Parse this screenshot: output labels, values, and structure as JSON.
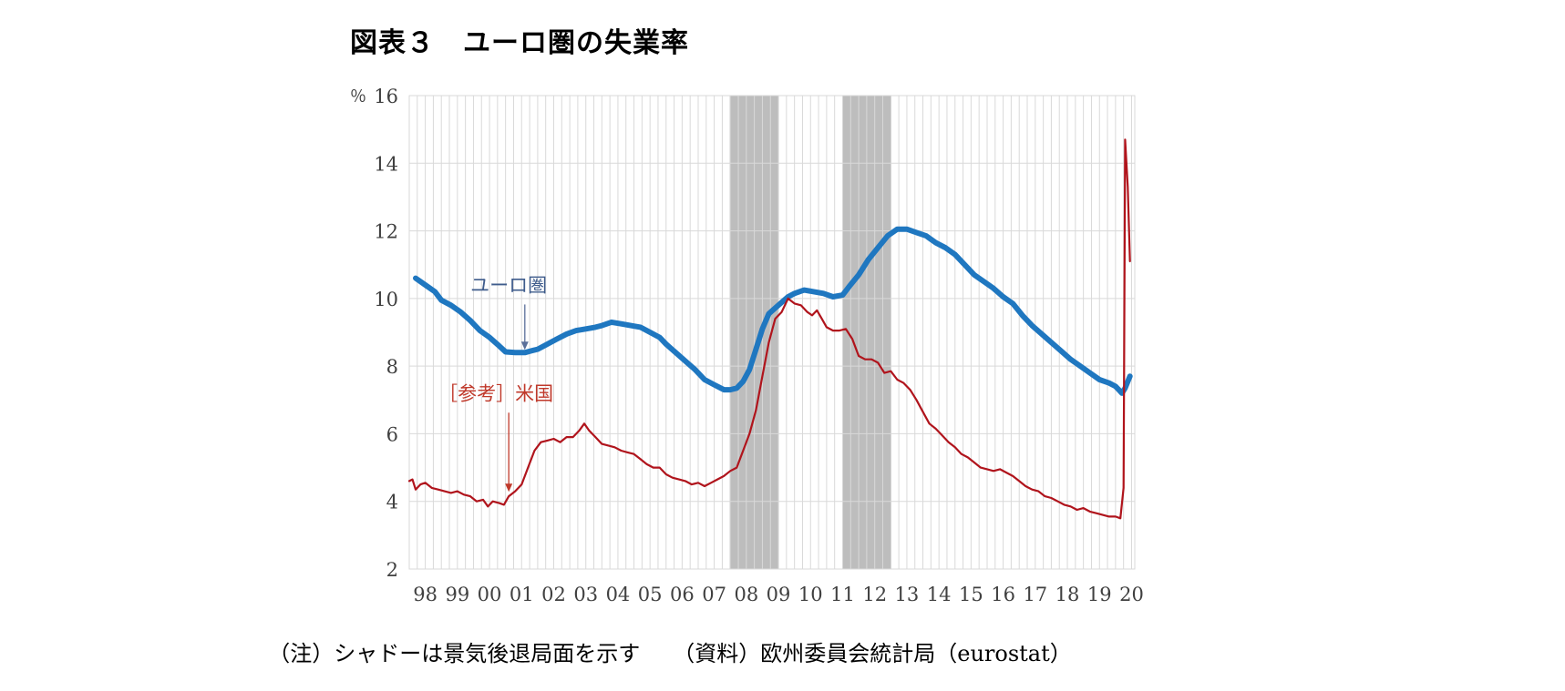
{
  "title": "図表３　ユーロ圏の失業率",
  "note": "（注）シャドーは景気後退局面を示す　　（資料）欧州委員会統計局（eurostat）",
  "chart_data": {
    "type": "line",
    "yunit": "％",
    "ylim": [
      2,
      16
    ],
    "yticks": [
      2,
      4,
      6,
      8,
      10,
      12,
      14,
      16
    ],
    "xlim": [
      1998.0,
      2020.6
    ],
    "xtick_labels": [
      "98",
      "99",
      "00",
      "01",
      "02",
      "03",
      "04",
      "05",
      "06",
      "07",
      "08",
      "09",
      "10",
      "11",
      "12",
      "13",
      "14",
      "15",
      "16",
      "17",
      "18",
      "19",
      "20"
    ],
    "grid": true,
    "recession_shading": [
      [
        2008.0,
        2009.5
      ],
      [
        2011.5,
        2013.0
      ]
    ],
    "series": [
      {
        "name": "ユーロ圏",
        "color": "#1f77c0",
        "points": [
          [
            1998.2,
            10.6
          ],
          [
            1998.5,
            10.4
          ],
          [
            1998.8,
            10.2
          ],
          [
            1999.0,
            9.95
          ],
          [
            1999.3,
            9.8
          ],
          [
            1999.6,
            9.6
          ],
          [
            1999.9,
            9.35
          ],
          [
            2000.2,
            9.05
          ],
          [
            2000.5,
            8.85
          ],
          [
            2000.8,
            8.6
          ],
          [
            2001.0,
            8.42
          ],
          [
            2001.3,
            8.4
          ],
          [
            2001.6,
            8.4
          ],
          [
            2001.8,
            8.45
          ],
          [
            2002.0,
            8.5
          ],
          [
            2002.3,
            8.65
          ],
          [
            2002.6,
            8.8
          ],
          [
            2002.9,
            8.95
          ],
          [
            2003.2,
            9.05
          ],
          [
            2003.5,
            9.1
          ],
          [
            2003.8,
            9.15
          ],
          [
            2004.0,
            9.2
          ],
          [
            2004.3,
            9.3
          ],
          [
            2004.6,
            9.25
          ],
          [
            2004.9,
            9.2
          ],
          [
            2005.2,
            9.15
          ],
          [
            2005.5,
            9.0
          ],
          [
            2005.8,
            8.85
          ],
          [
            2006.0,
            8.65
          ],
          [
            2006.3,
            8.4
          ],
          [
            2006.6,
            8.15
          ],
          [
            2006.9,
            7.9
          ],
          [
            2007.2,
            7.6
          ],
          [
            2007.5,
            7.45
          ],
          [
            2007.8,
            7.3
          ],
          [
            2008.0,
            7.3
          ],
          [
            2008.2,
            7.35
          ],
          [
            2008.4,
            7.55
          ],
          [
            2008.6,
            7.9
          ],
          [
            2008.8,
            8.5
          ],
          [
            2009.0,
            9.1
          ],
          [
            2009.2,
            9.55
          ],
          [
            2009.5,
            9.8
          ],
          [
            2009.8,
            10.05
          ],
          [
            2010.0,
            10.15
          ],
          [
            2010.3,
            10.25
          ],
          [
            2010.6,
            10.2
          ],
          [
            2010.9,
            10.15
          ],
          [
            2011.2,
            10.05
          ],
          [
            2011.5,
            10.1
          ],
          [
            2011.7,
            10.35
          ],
          [
            2012.0,
            10.7
          ],
          [
            2012.3,
            11.15
          ],
          [
            2012.6,
            11.5
          ],
          [
            2012.9,
            11.85
          ],
          [
            2013.2,
            12.05
          ],
          [
            2013.5,
            12.05
          ],
          [
            2013.8,
            11.95
          ],
          [
            2014.1,
            11.85
          ],
          [
            2014.4,
            11.65
          ],
          [
            2014.7,
            11.5
          ],
          [
            2015.0,
            11.3
          ],
          [
            2015.3,
            11.0
          ],
          [
            2015.6,
            10.7
          ],
          [
            2015.9,
            10.5
          ],
          [
            2016.2,
            10.3
          ],
          [
            2016.5,
            10.05
          ],
          [
            2016.8,
            9.85
          ],
          [
            2017.1,
            9.5
          ],
          [
            2017.4,
            9.2
          ],
          [
            2017.7,
            8.95
          ],
          [
            2018.0,
            8.7
          ],
          [
            2018.3,
            8.45
          ],
          [
            2018.6,
            8.2
          ],
          [
            2018.9,
            8.0
          ],
          [
            2019.2,
            7.8
          ],
          [
            2019.5,
            7.6
          ],
          [
            2019.8,
            7.5
          ],
          [
            2020.0,
            7.4
          ],
          [
            2020.1,
            7.3
          ],
          [
            2020.2,
            7.2
          ],
          [
            2020.3,
            7.35
          ],
          [
            2020.45,
            7.7
          ]
        ]
      },
      {
        "name": "［参考］米国",
        "color": "#b0141c",
        "points": [
          [
            1998.0,
            4.6
          ],
          [
            1998.1,
            4.65
          ],
          [
            1998.2,
            4.35
          ],
          [
            1998.35,
            4.5
          ],
          [
            1998.5,
            4.55
          ],
          [
            1998.7,
            4.4
          ],
          [
            1998.9,
            4.35
          ],
          [
            1999.1,
            4.3
          ],
          [
            1999.3,
            4.25
          ],
          [
            1999.5,
            4.3
          ],
          [
            1999.7,
            4.2
          ],
          [
            1999.9,
            4.15
          ],
          [
            2000.1,
            4.0
          ],
          [
            2000.3,
            4.05
          ],
          [
            2000.45,
            3.85
          ],
          [
            2000.6,
            4.0
          ],
          [
            2000.8,
            3.95
          ],
          [
            2000.95,
            3.9
          ],
          [
            2001.1,
            4.15
          ],
          [
            2001.3,
            4.3
          ],
          [
            2001.5,
            4.5
          ],
          [
            2001.7,
            5.0
          ],
          [
            2001.9,
            5.5
          ],
          [
            2002.1,
            5.75
          ],
          [
            2002.3,
            5.8
          ],
          [
            2002.5,
            5.85
          ],
          [
            2002.7,
            5.75
          ],
          [
            2002.9,
            5.9
          ],
          [
            2003.1,
            5.9
          ],
          [
            2003.3,
            6.1
          ],
          [
            2003.45,
            6.3
          ],
          [
            2003.6,
            6.1
          ],
          [
            2003.8,
            5.9
          ],
          [
            2004.0,
            5.7
          ],
          [
            2004.2,
            5.65
          ],
          [
            2004.4,
            5.6
          ],
          [
            2004.6,
            5.5
          ],
          [
            2004.8,
            5.45
          ],
          [
            2005.0,
            5.4
          ],
          [
            2005.2,
            5.25
          ],
          [
            2005.4,
            5.1
          ],
          [
            2005.6,
            5.0
          ],
          [
            2005.8,
            5.0
          ],
          [
            2006.0,
            4.8
          ],
          [
            2006.2,
            4.7
          ],
          [
            2006.4,
            4.65
          ],
          [
            2006.6,
            4.6
          ],
          [
            2006.8,
            4.5
          ],
          [
            2007.0,
            4.55
          ],
          [
            2007.2,
            4.45
          ],
          [
            2007.4,
            4.55
          ],
          [
            2007.6,
            4.65
          ],
          [
            2007.8,
            4.75
          ],
          [
            2008.0,
            4.9
          ],
          [
            2008.2,
            5.0
          ],
          [
            2008.4,
            5.5
          ],
          [
            2008.6,
            6.0
          ],
          [
            2008.8,
            6.7
          ],
          [
            2009.0,
            7.7
          ],
          [
            2009.2,
            8.7
          ],
          [
            2009.4,
            9.4
          ],
          [
            2009.6,
            9.6
          ],
          [
            2009.8,
            10.0
          ],
          [
            2010.0,
            9.85
          ],
          [
            2010.2,
            9.8
          ],
          [
            2010.4,
            9.6
          ],
          [
            2010.55,
            9.5
          ],
          [
            2010.7,
            9.65
          ],
          [
            2010.85,
            9.4
          ],
          [
            2011.0,
            9.15
          ],
          [
            2011.2,
            9.05
          ],
          [
            2011.4,
            9.05
          ],
          [
            2011.6,
            9.1
          ],
          [
            2011.8,
            8.8
          ],
          [
            2012.0,
            8.3
          ],
          [
            2012.2,
            8.2
          ],
          [
            2012.4,
            8.2
          ],
          [
            2012.6,
            8.1
          ],
          [
            2012.8,
            7.8
          ],
          [
            2013.0,
            7.85
          ],
          [
            2013.2,
            7.6
          ],
          [
            2013.4,
            7.5
          ],
          [
            2013.6,
            7.3
          ],
          [
            2013.8,
            7.0
          ],
          [
            2014.0,
            6.65
          ],
          [
            2014.2,
            6.3
          ],
          [
            2014.4,
            6.15
          ],
          [
            2014.6,
            5.95
          ],
          [
            2014.8,
            5.75
          ],
          [
            2015.0,
            5.6
          ],
          [
            2015.2,
            5.4
          ],
          [
            2015.4,
            5.3
          ],
          [
            2015.6,
            5.15
          ],
          [
            2015.8,
            5.0
          ],
          [
            2016.0,
            4.95
          ],
          [
            2016.2,
            4.9
          ],
          [
            2016.4,
            4.95
          ],
          [
            2016.6,
            4.85
          ],
          [
            2016.8,
            4.75
          ],
          [
            2017.0,
            4.6
          ],
          [
            2017.2,
            4.45
          ],
          [
            2017.4,
            4.35
          ],
          [
            2017.6,
            4.3
          ],
          [
            2017.8,
            4.15
          ],
          [
            2018.0,
            4.1
          ],
          [
            2018.2,
            4.0
          ],
          [
            2018.4,
            3.9
          ],
          [
            2018.6,
            3.85
          ],
          [
            2018.8,
            3.75
          ],
          [
            2019.0,
            3.8
          ],
          [
            2019.2,
            3.7
          ],
          [
            2019.4,
            3.65
          ],
          [
            2019.6,
            3.6
          ],
          [
            2019.8,
            3.55
          ],
          [
            2020.0,
            3.55
          ],
          [
            2020.15,
            3.5
          ],
          [
            2020.25,
            4.4
          ],
          [
            2020.3,
            14.7
          ],
          [
            2020.38,
            13.3
          ],
          [
            2020.45,
            11.1
          ]
        ]
      }
    ],
    "annotations": [
      {
        "text": "ユーロ圏",
        "series": 0,
        "at": [
          2001.6,
          8.4
        ],
        "label_at": [
          2001.1,
          10.2
        ]
      },
      {
        "text": "［参考］米国",
        "series": 1,
        "at": [
          2001.1,
          4.2
        ],
        "label_at": [
          2000.7,
          7.0
        ]
      }
    ]
  }
}
